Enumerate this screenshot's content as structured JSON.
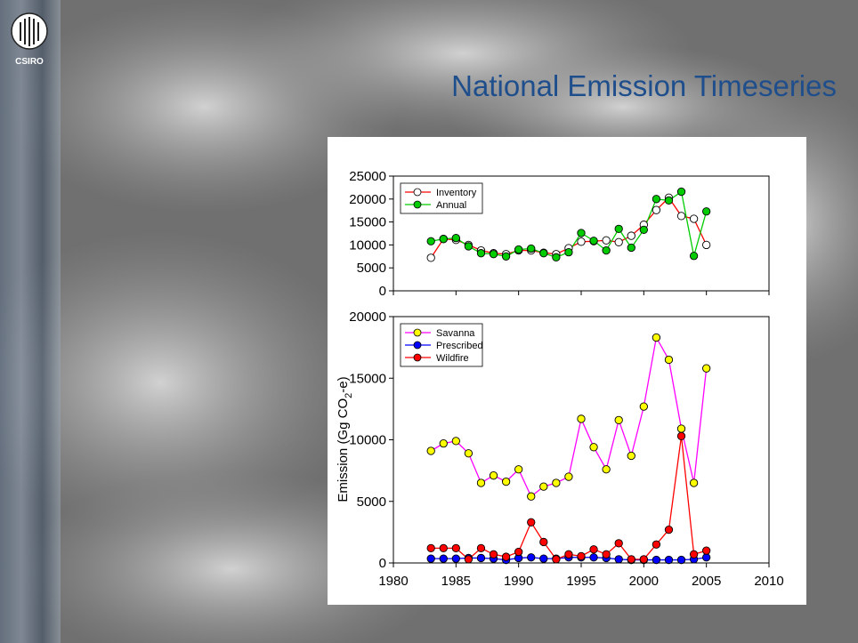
{
  "slide": {
    "title": "National Emission Timeseries",
    "logo_text": "CSIRO",
    "colors": {
      "title": "#1f4e8c"
    }
  },
  "chart_data": [
    {
      "type": "line",
      "x": [
        1983,
        1984,
        1985,
        1986,
        1987,
        1988,
        1989,
        1990,
        1991,
        1992,
        1993,
        1994,
        1995,
        1996,
        1997,
        1998,
        1999,
        2000,
        2001,
        2002,
        2003,
        2004,
        2005
      ],
      "series": [
        {
          "name": "Inventory",
          "color": "#ff0000",
          "marker": "#ffffff",
          "values": [
            7200,
            11300,
            11100,
            10000,
            8800,
            8200,
            8000,
            8800,
            8800,
            8300,
            8000,
            9300,
            10700,
            10800,
            11000,
            10600,
            12000,
            14400,
            17600,
            20300,
            16300,
            15700,
            10000
          ]
        },
        {
          "name": "Annual",
          "color": "#00cc00",
          "marker": "#00cc00",
          "values": [
            10800,
            11300,
            11500,
            9700,
            8200,
            8000,
            7500,
            9000,
            9200,
            8200,
            7300,
            8400,
            12600,
            10900,
            8800,
            13500,
            9400,
            13300,
            20000,
            19700,
            21600,
            7600,
            17300
          ]
        }
      ],
      "xlim": [
        1980,
        2010
      ],
      "ylim": [
        0,
        25000
      ],
      "yticks": [
        0,
        5000,
        10000,
        15000,
        20000,
        25000
      ],
      "legend": "top-left"
    },
    {
      "type": "line",
      "x": [
        1983,
        1984,
        1985,
        1986,
        1987,
        1988,
        1989,
        1990,
        1991,
        1992,
        1993,
        1994,
        1995,
        1996,
        1997,
        1998,
        1999,
        2000,
        2001,
        2002,
        2003,
        2004,
        2005
      ],
      "series": [
        {
          "name": "Savanna",
          "color": "#ff00ff",
          "marker": "#ffff00",
          "values": [
            9100,
            9700,
            9900,
            8900,
            6500,
            7100,
            6600,
            7600,
            5400,
            6200,
            6500,
            7000,
            11700,
            9400,
            7600,
            11600,
            8700,
            12700,
            18300,
            16500,
            10900,
            6500,
            15800
          ]
        },
        {
          "name": "Prescribed",
          "color": "#0000ff",
          "marker": "#0000ff",
          "values": [
            350,
            350,
            350,
            400,
            400,
            350,
            250,
            400,
            450,
            350,
            350,
            450,
            450,
            450,
            400,
            300,
            250,
            250,
            250,
            250,
            250,
            300,
            450
          ]
        },
        {
          "name": "Wildfire",
          "color": "#ff0000",
          "marker": "#ff0000",
          "values": [
            1200,
            1200,
            1200,
            300,
            1200,
            700,
            500,
            900,
            3300,
            1700,
            300,
            700,
            550,
            1100,
            700,
            1600,
            300,
            300,
            1500,
            2700,
            10300,
            700,
            1000
          ]
        }
      ],
      "xlim": [
        1980,
        2010
      ],
      "ylim": [
        0,
        20000
      ],
      "yticks": [
        0,
        5000,
        10000,
        15000,
        20000
      ],
      "xticks": [
        1980,
        1985,
        1990,
        1995,
        2000,
        2005,
        2010
      ],
      "ylabel_main": "Emission (Gg CO",
      "ylabel_sub": "2",
      "ylabel_end": "-e)",
      "legend": "top-left"
    }
  ]
}
